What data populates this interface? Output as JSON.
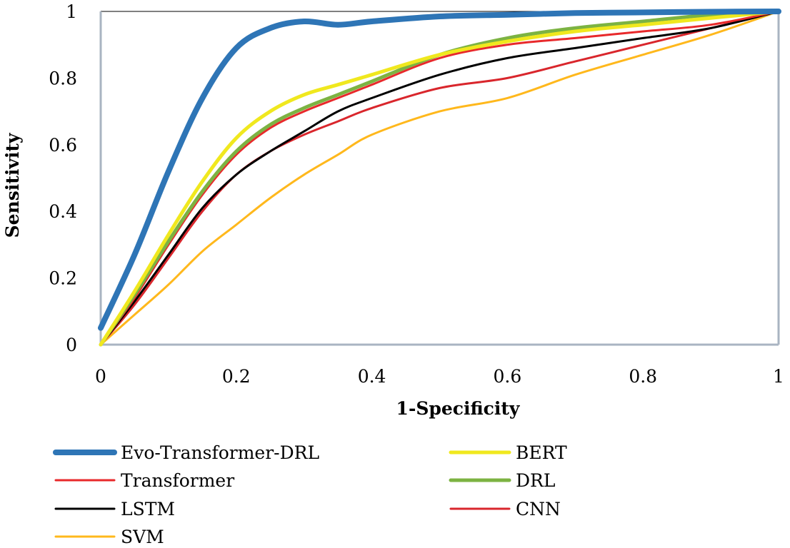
{
  "chart_data": {
    "type": "line",
    "xlabel": "1-Specificity",
    "ylabel": "Sensitivity",
    "xlim": [
      0,
      1
    ],
    "ylim": [
      0,
      1
    ],
    "xticks": [
      "0",
      "0.2",
      "0.4",
      "0.6",
      "0.8",
      "1"
    ],
    "yticks": [
      "0",
      "0.2",
      "0.4",
      "0.6",
      "0.8",
      "1"
    ],
    "grid": false,
    "legend_position": "bottom",
    "series": [
      {
        "name": "Evo-Transformer-DRL",
        "color": "#2E75B6",
        "x": [
          0,
          0.05,
          0.1,
          0.15,
          0.2,
          0.25,
          0.3,
          0.35,
          0.4,
          0.5,
          0.6,
          0.7,
          0.8,
          0.9,
          1.0
        ],
        "y": [
          0.05,
          0.27,
          0.52,
          0.74,
          0.89,
          0.95,
          0.97,
          0.96,
          0.97,
          0.985,
          0.99,
          0.995,
          0.997,
          0.999,
          1.0
        ]
      },
      {
        "name": "BERT",
        "color": "#F0E81E",
        "x": [
          0,
          0.05,
          0.1,
          0.15,
          0.2,
          0.25,
          0.3,
          0.35,
          0.4,
          0.5,
          0.6,
          0.7,
          0.8,
          0.9,
          1.0
        ],
        "y": [
          0,
          0.16,
          0.33,
          0.49,
          0.62,
          0.7,
          0.75,
          0.78,
          0.81,
          0.87,
          0.91,
          0.94,
          0.96,
          0.98,
          1.0
        ]
      },
      {
        "name": "Transformer",
        "color": "#E8292B",
        "x": [
          0,
          0.05,
          0.1,
          0.15,
          0.2,
          0.25,
          0.3,
          0.35,
          0.4,
          0.5,
          0.6,
          0.7,
          0.8,
          0.9,
          1.0
        ],
        "y": [
          0,
          0.14,
          0.3,
          0.45,
          0.57,
          0.65,
          0.7,
          0.74,
          0.78,
          0.86,
          0.9,
          0.92,
          0.94,
          0.96,
          1.0
        ]
      },
      {
        "name": "DRL",
        "color": "#7CB342",
        "x": [
          0,
          0.05,
          0.1,
          0.15,
          0.2,
          0.25,
          0.3,
          0.35,
          0.4,
          0.5,
          0.6,
          0.7,
          0.8,
          0.9,
          1.0
        ],
        "y": [
          0,
          0.15,
          0.31,
          0.46,
          0.58,
          0.66,
          0.71,
          0.75,
          0.79,
          0.87,
          0.92,
          0.95,
          0.97,
          0.99,
          1.0
        ]
      },
      {
        "name": "LSTM",
        "color": "#000000",
        "x": [
          0,
          0.05,
          0.1,
          0.15,
          0.2,
          0.25,
          0.3,
          0.35,
          0.4,
          0.5,
          0.6,
          0.7,
          0.8,
          0.9,
          1.0
        ],
        "y": [
          0,
          0.13,
          0.27,
          0.41,
          0.51,
          0.58,
          0.64,
          0.7,
          0.74,
          0.81,
          0.86,
          0.89,
          0.92,
          0.95,
          1.0
        ]
      },
      {
        "name": "CNN",
        "color": "#D9262C",
        "x": [
          0,
          0.05,
          0.1,
          0.15,
          0.2,
          0.25,
          0.3,
          0.35,
          0.4,
          0.5,
          0.6,
          0.7,
          0.8,
          0.9,
          1.0
        ],
        "y": [
          0,
          0.12,
          0.26,
          0.4,
          0.51,
          0.58,
          0.63,
          0.67,
          0.71,
          0.77,
          0.8,
          0.85,
          0.9,
          0.95,
          1.0
        ]
      },
      {
        "name": "SVM",
        "color": "#FFB81C",
        "x": [
          0,
          0.05,
          0.1,
          0.15,
          0.2,
          0.25,
          0.3,
          0.35,
          0.4,
          0.5,
          0.6,
          0.7,
          0.8,
          0.9,
          1.0
        ],
        "y": [
          0,
          0.09,
          0.18,
          0.28,
          0.36,
          0.44,
          0.51,
          0.57,
          0.63,
          0.7,
          0.74,
          0.81,
          0.87,
          0.93,
          1.0
        ]
      }
    ]
  }
}
